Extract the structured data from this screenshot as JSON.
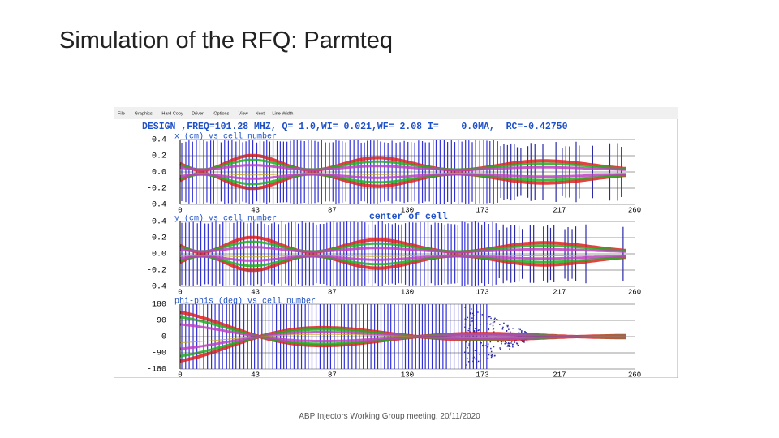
{
  "slide": {
    "title": "Simulation of the RFQ: Parmteq",
    "footer": "ABP Injectors Working Group meeting, 20/11/2020"
  },
  "screenshot": {
    "menu": [
      "File",
      "Graphics",
      "Hard Copy",
      "Driver",
      "Options",
      "View",
      "Next",
      "Line Width"
    ],
    "header": "DESIGN ,FREQ=101.28 MHZ, Q= 1.0,WI= 0.021,WF= 2.08 I=    0.0MA,  RC=-0.42750",
    "annotation": "center of cell",
    "panels": [
      {
        "label": "x (cm) vs cell number",
        "yticks": [
          "0.4",
          "0.2",
          "0.0",
          "-0.2",
          "-0.4"
        ],
        "xticks": [
          "0",
          "43",
          "87",
          "130",
          "173",
          "217",
          "260"
        ]
      },
      {
        "label": "y (cm) vs cell number",
        "yticks": [
          "0.4",
          "0.2",
          "0.0",
          "-0.2",
          "-0.4"
        ],
        "xticks": [
          "0",
          "43",
          "87",
          "130",
          "173",
          "217",
          "260"
        ]
      },
      {
        "label": "phi-phis (deg) vs cell number",
        "yticks": [
          "180",
          "90",
          "0",
          "-90",
          "-180"
        ],
        "xticks": [
          "0",
          "43",
          "87",
          "130",
          "173",
          "217",
          "260"
        ]
      }
    ]
  }
}
